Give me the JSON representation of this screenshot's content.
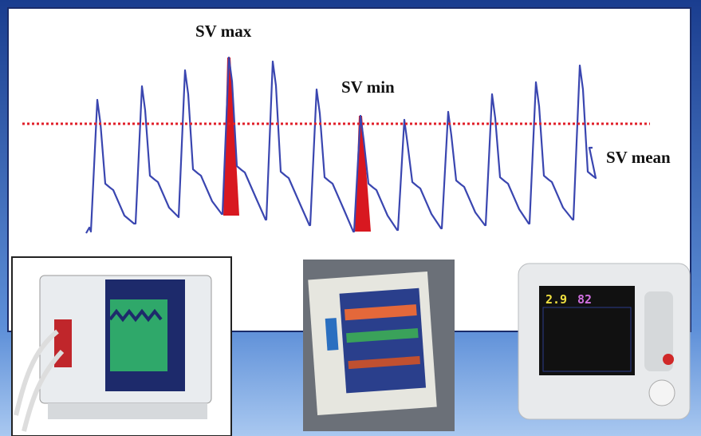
{
  "labels": {
    "sv_max": "SV max",
    "sv_min": "SV min",
    "sv_mean": "SV mean"
  },
  "monitor": {
    "value_1": "2.9",
    "value_2": "82"
  }
}
